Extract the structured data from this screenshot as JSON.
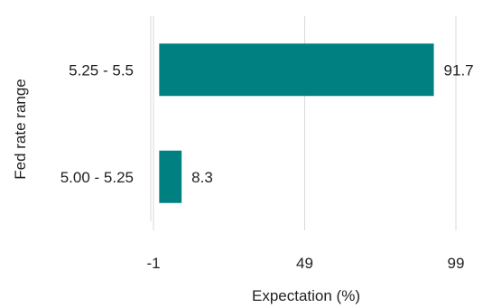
{
  "chart_data": {
    "type": "bar",
    "orientation": "horizontal",
    "categories": [
      "5.25 - 5.5",
      "5.00 - 5.25"
    ],
    "values": [
      91.7,
      8.3
    ],
    "data_labels": [
      "91.7",
      "8.3"
    ],
    "xlabel": "Expectation (%)",
    "ylabel": "Fed rate range",
    "xlim": [
      -1,
      99
    ],
    "xticks": [
      -1,
      49,
      99
    ],
    "xtick_labels": [
      "-1",
      "49",
      "99"
    ],
    "grid": "vertical",
    "legend": "none",
    "colors": {
      "bar": "#008080",
      "grid": "#d9d9d9",
      "axis": "#d9d9d9"
    }
  }
}
